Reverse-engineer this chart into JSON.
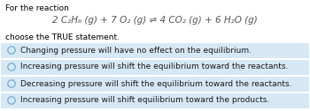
{
  "title_line": "For the reaction",
  "equation": "2 C₂H₆ (g) + 7 O₂ (g) ⇌ 4 CO₂ (g) + 6 H₂O (g)",
  "subtitle": "choose the TRUE statement.",
  "options": [
    "Changing pressure will have no effect on the equilibrium.",
    "Increasing pressure will shift the equilibrium toward the reactants.",
    "Decreasing pressure will shift the equilibrium toward the reactants.",
    "Increasing pressure will shift equilibrium toward the products."
  ],
  "background_color": "#ffffff",
  "option_bg_color": "#d6e8f5",
  "option_text_color": "#1a1a1a",
  "circle_edge_color": "#7ab3d4",
  "title_fontsize": 6.5,
  "subtitle_fontsize": 6.5,
  "option_fontsize": 6.5,
  "equation_fontsize": 7.5,
  "fig_width": 3.5,
  "fig_height": 1.26,
  "dpi": 100
}
